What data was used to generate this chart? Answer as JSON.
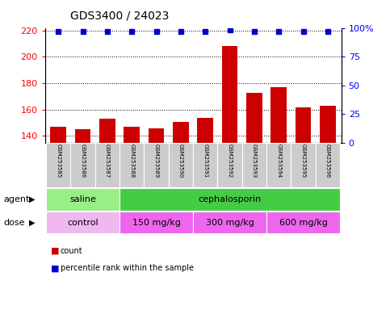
{
  "title": "GDS3400 / 24023",
  "samples": [
    "GSM253585",
    "GSM253586",
    "GSM253587",
    "GSM253588",
    "GSM253589",
    "GSM253590",
    "GSM253591",
    "GSM253592",
    "GSM253593",
    "GSM253594",
    "GSM253595",
    "GSM253596"
  ],
  "counts": [
    147,
    145,
    153,
    147,
    146,
    151,
    154,
    208,
    173,
    177,
    162,
    163
  ],
  "percentile_ranks": [
    97,
    97,
    97,
    97,
    97,
    97,
    97,
    98,
    97,
    97,
    97,
    97
  ],
  "bar_color": "#cc0000",
  "dot_color": "#0000cc",
  "ylim_left": [
    135,
    222
  ],
  "ylim_right": [
    0,
    100
  ],
  "yticks_left": [
    140,
    160,
    180,
    200,
    220
  ],
  "yticks_right": [
    0,
    25,
    50,
    75,
    100
  ],
  "agent_groups": [
    {
      "label": "saline",
      "start": 0,
      "end": 3,
      "color": "#99ee88"
    },
    {
      "label": "cephalosporin",
      "start": 3,
      "end": 12,
      "color": "#44cc44"
    }
  ],
  "dose_groups": [
    {
      "label": "control",
      "start": 0,
      "end": 3,
      "color": "#f0b8f0"
    },
    {
      "label": "150 mg/kg",
      "start": 3,
      "end": 6,
      "color": "#ee66ee"
    },
    {
      "label": "300 mg/kg",
      "start": 6,
      "end": 9,
      "color": "#ee66ee"
    },
    {
      "label": "600 mg/kg",
      "start": 9,
      "end": 12,
      "color": "#ee66ee"
    }
  ],
  "background_color": "#ffffff",
  "sample_bg_color": "#cccccc",
  "title_fontsize": 10,
  "axis_fontsize": 8,
  "tick_fontsize": 8,
  "label_fontsize": 8,
  "sample_fontsize": 5,
  "legend_fontsize": 7
}
